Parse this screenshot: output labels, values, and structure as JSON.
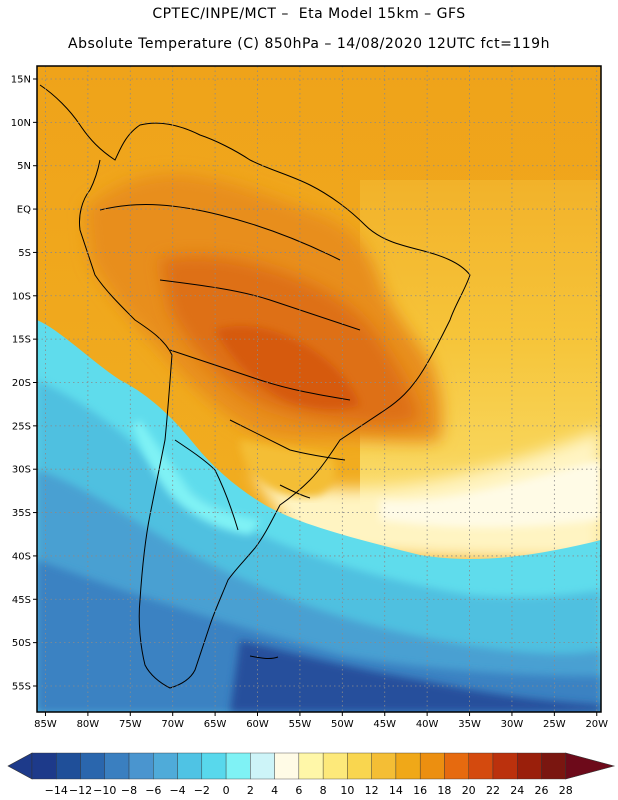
{
  "header": {
    "title_line1": "CPTEC/INPE/MCT –  Eta Model 15km – GFS",
    "title_line2": "Absolute Temperature (C) 850hPa – 14/08/2020 12UTC fct=119h"
  },
  "map": {
    "lat_labels": [
      "15N",
      "10N",
      "5N",
      "EQ",
      "5S",
      "10S",
      "15S",
      "20S",
      "25S",
      "30S",
      "35S",
      "40S",
      "45S",
      "50S",
      "55S"
    ],
    "lon_labels": [
      "85W",
      "80W",
      "75W",
      "70W",
      "65W",
      "60W",
      "55W",
      "50W",
      "45W",
      "40W",
      "35W",
      "30W",
      "25W",
      "20W"
    ],
    "lat_values": [
      15,
      10,
      5,
      0,
      -5,
      -10,
      -15,
      -20,
      -25,
      -30,
      -35,
      -40,
      -45,
      -50,
      -55
    ],
    "lon_values": [
      -85,
      -80,
      -75,
      -70,
      -65,
      -60,
      -55,
      -50,
      -45,
      -40,
      -35,
      -30,
      -25,
      -20
    ],
    "lat_range": [
      -58,
      16.5
    ],
    "lon_range": [
      -86,
      -19.5
    ],
    "grid": true
  },
  "colorbar": {
    "labels": [
      "-14",
      "-12",
      "-10",
      "-8",
      "-6",
      "-4",
      "-2",
      "0",
      "2",
      "4",
      "6",
      "8",
      "10",
      "12",
      "14",
      "16",
      "18",
      "20",
      "22",
      "24",
      "26",
      "28"
    ],
    "colors": [
      "#1d3a8a",
      "#1f4f99",
      "#2a66ad",
      "#3a7fc0",
      "#4a95cf",
      "#4fabd9",
      "#4fc3e4",
      "#58d8ec",
      "#7ff2f5",
      "#cdf4f8",
      "#fffbe6",
      "#fff7a8",
      "#fde97a",
      "#f9d64f",
      "#f4be35",
      "#f0a818",
      "#ec8f10",
      "#e66a0f",
      "#d44a0e",
      "#bb310d",
      "#9a1f0b",
      "#7a1610",
      "#6d0a1a"
    ]
  }
}
